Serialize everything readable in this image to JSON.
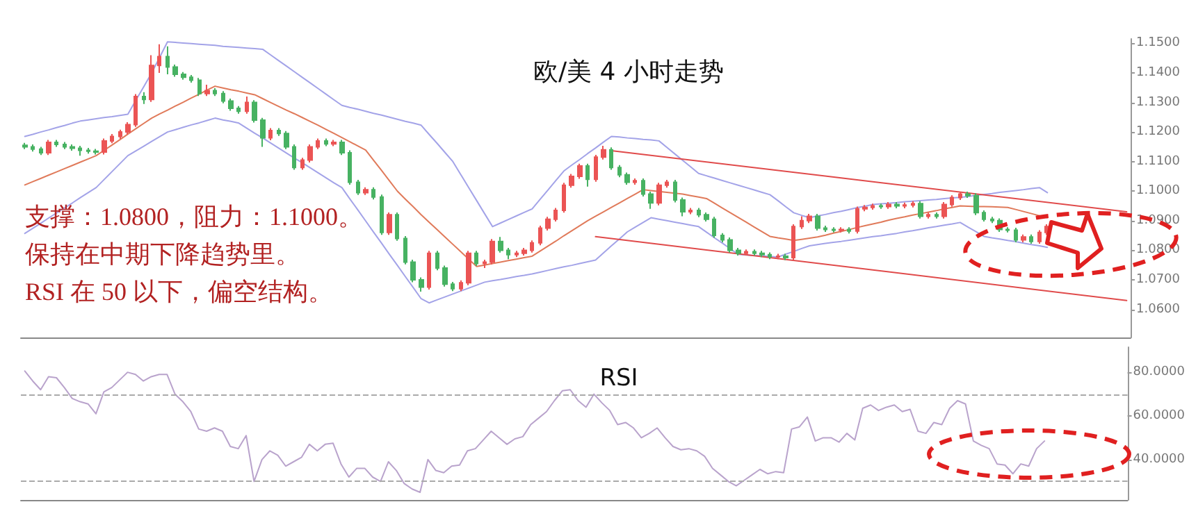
{
  "chart_data": [
    {
      "type": "candlestick",
      "title": "欧/美 4 小时走势",
      "annotations": [
        "支撑：1.0800，阻力：1.1000。",
        "保持在中期下降趋势里。",
        "RSI 在 50 以下，偏空结构。"
      ],
      "categories": [
        null,
        null,
        null,
        null,
        null,
        null,
        null,
        null,
        null,
        null,
        null,
        null,
        null,
        null,
        null,
        null,
        null,
        null,
        null,
        null,
        null,
        null,
        null,
        null,
        null,
        null,
        null,
        null,
        null,
        null,
        null,
        null,
        null,
        null,
        null,
        null,
        null,
        null,
        null,
        null,
        null,
        null,
        null,
        null,
        null,
        null,
        null,
        null,
        null,
        null,
        null,
        null,
        null,
        null,
        null,
        null,
        null,
        null,
        null,
        null,
        null,
        null,
        null,
        null,
        null,
        null,
        null,
        null,
        null,
        null,
        null,
        null,
        null,
        null,
        null,
        null,
        null,
        null,
        null,
        null,
        null,
        null,
        null,
        null,
        null,
        null,
        null,
        null,
        null,
        null,
        null,
        null,
        null,
        null,
        null,
        null,
        null,
        null,
        null,
        null,
        null,
        null,
        null,
        null,
        null,
        null,
        null,
        null,
        null,
        null,
        null,
        null,
        null,
        null,
        null,
        null,
        null,
        null,
        null,
        null,
        null,
        null,
        null,
        null,
        null,
        null,
        null,
        null,
        null,
        null,
        null,
        null,
        null,
        null,
        null,
        null,
        null,
        null,
        null,
        null
      ],
      "ohlc": [
        [
          1.1155,
          1.1163,
          1.1142,
          1.115
        ],
        [
          1.115,
          1.1158,
          1.1134,
          1.1142
        ],
        [
          1.1142,
          1.115,
          1.1122,
          1.113
        ],
        [
          1.113,
          1.1173,
          1.1122,
          1.1165
        ],
        [
          1.1165,
          1.1173,
          1.115,
          1.1158
        ],
        [
          1.1158,
          1.1166,
          1.1142,
          1.115
        ],
        [
          1.115,
          1.1158,
          1.1137,
          1.1145
        ],
        [
          1.1145,
          1.1153,
          1.112,
          1.1138
        ],
        [
          1.1138,
          1.1146,
          1.1127,
          1.1135
        ],
        [
          1.1135,
          1.1143,
          1.1124,
          1.1132
        ],
        [
          1.1132,
          1.1178,
          1.1124,
          1.117
        ],
        [
          1.117,
          1.1193,
          1.1162,
          1.1185
        ],
        [
          1.1185,
          1.1208,
          1.1177,
          1.12
        ],
        [
          1.12,
          1.1233,
          1.1192,
          1.1225
        ],
        [
          1.1225,
          1.1328,
          1.1217,
          1.132
        ],
        [
          1.132,
          1.1335,
          1.1295,
          1.131
        ],
        [
          1.131,
          1.146,
          1.1302,
          1.1425
        ],
        [
          1.1425,
          1.1497,
          1.14,
          1.1455
        ],
        [
          1.1455,
          1.149,
          1.1395,
          1.142
        ],
        [
          1.142,
          1.1428,
          1.1387,
          1.1395
        ],
        [
          1.1395,
          1.1403,
          1.1377,
          1.1385
        ],
        [
          1.1385,
          1.1393,
          1.1367,
          1.1375
        ],
        [
          1.1375,
          1.1383,
          1.1322,
          1.133
        ],
        [
          1.133,
          1.136,
          1.1322,
          1.134
        ],
        [
          1.134,
          1.1348,
          1.1322,
          1.133
        ],
        [
          1.133,
          1.1338,
          1.1297,
          1.1305
        ],
        [
          1.1305,
          1.1313,
          1.1272,
          1.128
        ],
        [
          1.128,
          1.1288,
          1.1262,
          1.127
        ],
        [
          1.127,
          1.132,
          1.1262,
          1.13
        ],
        [
          1.13,
          1.1308,
          1.1232,
          1.124
        ],
        [
          1.124,
          1.1248,
          1.115,
          1.118
        ],
        [
          1.118,
          1.1213,
          1.1172,
          1.1205
        ],
        [
          1.1205,
          1.1213,
          1.1187,
          1.1195
        ],
        [
          1.1195,
          1.1203,
          1.1142,
          1.115
        ],
        [
          1.115,
          1.1158,
          1.1072,
          1.108
        ],
        [
          1.108,
          1.1113,
          1.1072,
          1.1105
        ],
        [
          1.1105,
          1.1158,
          1.1097,
          1.115
        ],
        [
          1.115,
          1.1178,
          1.1142,
          1.117
        ],
        [
          1.117,
          1.1178,
          1.1152,
          1.116
        ],
        [
          1.116,
          1.1173,
          1.1152,
          1.1165
        ],
        [
          1.1165,
          1.1173,
          1.1122,
          1.113
        ],
        [
          1.113,
          1.1138,
          1.1022,
          1.103
        ],
        [
          1.103,
          1.1038,
          1.0987,
          1.0995
        ],
        [
          1.0995,
          1.1013,
          1.0987,
          1.1005
        ],
        [
          1.1005,
          1.1013,
          1.0972,
          1.098
        ],
        [
          1.098,
          1.0988,
          1.0852,
          1.086
        ],
        [
          1.086,
          1.0928,
          1.0852,
          1.092
        ],
        [
          1.092,
          1.0928,
          1.0832,
          1.084
        ],
        [
          1.084,
          1.0848,
          1.0752,
          1.076
        ],
        [
          1.076,
          1.0768,
          1.0692,
          1.07
        ],
        [
          1.07,
          1.0708,
          1.066,
          1.0675
        ],
        [
          1.0675,
          1.0798,
          1.0667,
          1.079
        ],
        [
          1.079,
          1.0798,
          1.0732,
          1.074
        ],
        [
          1.074,
          1.0748,
          1.0677,
          1.0685
        ],
        [
          1.0685,
          1.0693,
          1.0662,
          1.067
        ],
        [
          1.067,
          1.0698,
          1.0662,
          1.069
        ],
        [
          1.069,
          1.0798,
          1.0682,
          1.079
        ],
        [
          1.079,
          1.0798,
          1.0747,
          1.0755
        ],
        [
          1.0755,
          1.0768,
          1.074,
          1.076
        ],
        [
          1.076,
          1.0838,
          1.0752,
          1.083
        ],
        [
          1.083,
          1.0845,
          1.0792,
          1.08
        ],
        [
          1.08,
          1.0808,
          1.077,
          1.0785
        ],
        [
          1.0785,
          1.0798,
          1.0777,
          1.079
        ],
        [
          1.079,
          1.0808,
          1.0782,
          1.08
        ],
        [
          1.08,
          1.0833,
          1.0792,
          1.0825
        ],
        [
          1.0825,
          1.0883,
          1.0817,
          1.0875
        ],
        [
          1.0875,
          1.0913,
          1.0867,
          1.0905
        ],
        [
          1.0905,
          1.0943,
          1.0897,
          1.0935
        ],
        [
          1.0935,
          1.1028,
          1.0927,
          1.102
        ],
        [
          1.102,
          1.1058,
          1.1012,
          1.105
        ],
        [
          1.105,
          1.1093,
          1.1042,
          1.1085
        ],
        [
          1.1085,
          1.1093,
          1.1015,
          1.104
        ],
        [
          1.104,
          1.1123,
          1.1032,
          1.1115
        ],
        [
          1.1115,
          1.1153,
          1.1107,
          1.114
        ],
        [
          1.114,
          1.1148,
          1.1072,
          1.108
        ],
        [
          1.108,
          1.1088,
          1.1047,
          1.1055
        ],
        [
          1.1055,
          1.1063,
          1.1022,
          1.103
        ],
        [
          1.103,
          1.1043,
          1.1022,
          1.1035
        ],
        [
          1.1035,
          1.1043,
          1.0982,
          1.099
        ],
        [
          1.099,
          1.0998,
          1.094,
          1.096
        ],
        [
          1.096,
          1.1028,
          1.0952,
          1.102
        ],
        [
          1.102,
          1.1038,
          1.1012,
          1.103
        ],
        [
          1.103,
          1.1038,
          1.0962,
          1.097
        ],
        [
          1.097,
          1.0978,
          1.0915,
          1.093
        ],
        [
          1.093,
          1.0943,
          1.0922,
          1.0935
        ],
        [
          1.0935,
          1.0943,
          1.0912,
          1.092
        ],
        [
          1.092,
          1.0928,
          1.0897,
          1.0905
        ],
        [
          1.0905,
          1.0913,
          1.0842,
          1.085
        ],
        [
          1.085,
          1.0858,
          1.0827,
          1.0835
        ],
        [
          1.0835,
          1.0843,
          1.0792,
          1.08
        ],
        [
          1.08,
          1.0808,
          1.0782,
          1.079
        ],
        [
          1.079,
          1.0803,
          1.0782,
          1.0795
        ],
        [
          1.0795,
          1.0803,
          1.0782,
          1.079
        ],
        [
          1.079,
          1.0798,
          1.0777,
          1.0785
        ],
        [
          1.0785,
          1.0793,
          1.077,
          1.0778
        ],
        [
          1.0778,
          1.0788,
          1.077,
          1.078
        ],
        [
          1.078,
          1.0788,
          1.0767,
          1.0775
        ],
        [
          1.0775,
          1.0888,
          1.0767,
          1.088
        ],
        [
          1.088,
          1.0915,
          1.0872,
          1.09
        ],
        [
          1.09,
          1.0923,
          1.0892,
          1.0915
        ],
        [
          1.0915,
          1.0923,
          1.0867,
          1.0875
        ],
        [
          1.0875,
          1.0883,
          1.0862,
          1.087
        ],
        [
          1.087,
          1.0878,
          1.086,
          1.0868
        ],
        [
          1.0868,
          1.0878,
          1.086,
          1.087
        ],
        [
          1.087,
          1.0878,
          1.0857,
          1.0865
        ],
        [
          1.0865,
          1.0948,
          1.0857,
          1.094
        ],
        [
          1.094,
          1.0953,
          1.0932,
          1.0945
        ],
        [
          1.0945,
          1.0958,
          1.0937,
          1.095
        ],
        [
          1.095,
          1.0958,
          1.094,
          1.0948
        ],
        [
          1.0948,
          1.0963,
          1.094,
          1.0955
        ],
        [
          1.0955,
          1.0963,
          1.0942,
          1.095
        ],
        [
          1.095,
          1.0961,
          1.0942,
          1.0953
        ],
        [
          1.0953,
          1.0966,
          1.0945,
          1.0958
        ],
        [
          1.0958,
          1.0966,
          1.0907,
          1.0915
        ],
        [
          1.0915,
          1.0928,
          1.0907,
          1.092
        ],
        [
          1.092,
          1.0928,
          1.0907,
          1.0915
        ],
        [
          1.0915,
          1.0963,
          1.0907,
          1.0955
        ],
        [
          1.0955,
          1.0986,
          1.0947,
          1.0978
        ],
        [
          1.0978,
          1.0998,
          1.097,
          1.099
        ],
        [
          1.099,
          1.0998,
          1.0977,
          1.0985
        ],
        [
          1.0985,
          1.0993,
          1.0919,
          1.0927
        ],
        [
          1.0927,
          1.0935,
          1.0897,
          1.0905
        ],
        [
          1.0905,
          1.0913,
          1.0892,
          1.09
        ],
        [
          1.09,
          1.0908,
          1.0862,
          1.087
        ],
        [
          1.087,
          1.0878,
          1.086,
          1.0868
        ],
        [
          1.0868,
          1.0876,
          1.0827,
          1.0835
        ],
        [
          1.0835,
          1.0853,
          1.0827,
          1.0845
        ],
        [
          1.0845,
          1.0853,
          1.0822,
          1.083
        ],
        [
          1.083,
          1.0868,
          1.0822,
          1.086
        ],
        [
          1.086,
          1.0888,
          1.0852,
          1.088
        ],
        null,
        null,
        null,
        null,
        null,
        null,
        null,
        null,
        null,
        null
      ],
      "series": [
        {
          "type": "line",
          "color": "#a3a3e8",
          "values": [
            1.1185,
            1.1192,
            1.12,
            1.1207,
            1.1215,
            1.1222,
            1.123,
            1.1237,
            1.1241,
            1.1245,
            1.1249,
            1.1252,
            1.1256,
            1.126,
            1.1307,
            1.1353,
            1.14,
            1.1452,
            1.1505,
            1.1503,
            1.1501,
            1.1499,
            1.1497,
            1.1495,
            1.1493,
            1.149,
            1.1488,
            1.1486,
            1.1484,
            1.1482,
            1.148,
            1.1461,
            1.1442,
            1.1423,
            1.1404,
            1.1385,
            1.1366,
            1.1347,
            1.1328,
            1.1309,
            1.129,
            1.1283,
            1.1277,
            1.127,
            1.1263,
            1.1257,
            1.125,
            1.1243,
            1.1236,
            1.123,
            1.1223,
            1.1192,
            1.1162,
            1.1131,
            1.11,
            1.1056,
            1.1012,
            1.0968,
            1.0924,
            1.088,
            1.0892,
            1.0904,
            1.0916,
            1.0928,
            1.094,
            1.0972,
            1.1004,
            1.1036,
            1.1068,
            1.1088,
            1.1107,
            1.1127,
            1.1146,
            1.1166,
            1.1185,
            1.1183,
            1.118,
            1.1178,
            1.1175,
            1.1173,
            1.117,
            1.1148,
            1.1126,
            1.1104,
            1.1082,
            1.106,
            1.1052,
            1.1044,
            1.1036,
            1.1028,
            1.102,
            1.1012,
            1.1004,
            1.0996,
            1.0988,
            1.0968,
            1.0947,
            1.0927,
            1.0918,
            1.091,
            1.0916,
            1.0921,
            1.0927,
            1.0932,
            1.0938,
            1.0944,
            1.0949,
            1.0955,
            1.0957,
            1.0959,
            1.0961,
            1.0964,
            1.0966,
            1.0968,
            1.097,
            1.0972,
            1.0975,
            1.0977,
            1.0979,
            1.0982,
            1.0986,
            1.0989,
            1.0992,
            1.0996,
            1.0999,
            1.1002,
            1.1005,
            1.1009,
            1.1012,
            1.0995,
            null,
            null,
            null,
            null,
            null,
            null,
            null,
            null,
            null,
            null
          ]
        },
        {
          "type": "line",
          "color": "#e07a5a",
          "values": [
            1.1021,
            1.1032,
            1.1043,
            1.1054,
            1.1065,
            1.1076,
            1.1087,
            1.1098,
            1.1109,
            1.112,
            1.1138,
            1.1156,
            1.1174,
            1.1193,
            1.1211,
            1.1229,
            1.1247,
            1.1261,
            1.1274,
            1.1288,
            1.1301,
            1.1315,
            1.1328,
            1.1342,
            1.1355,
            1.1349,
            1.1343,
            1.1338,
            1.1332,
            1.1326,
            1.1313,
            1.13,
            1.1287,
            1.1274,
            1.1262,
            1.1249,
            1.1236,
            1.1223,
            1.1209,
            1.1195,
            1.1181,
            1.1167,
            1.1153,
            1.1139,
            1.1104,
            1.107,
            1.1035,
            1.1,
            1.0973,
            1.0947,
            1.092,
            1.0895,
            1.087,
            1.0845,
            1.082,
            1.0795,
            1.077,
            1.0745,
            1.075,
            1.0755,
            1.076,
            1.0765,
            1.077,
            1.0775,
            1.078,
            1.0797,
            1.0814,
            1.0831,
            1.0849,
            1.0866,
            1.0883,
            1.09,
            1.0915,
            1.093,
            1.0945,
            1.096,
            1.0975,
            1.099,
            1.1005,
            1.1002,
            1.0999,
            1.0996,
            1.0993,
            1.099,
            1.0985,
            1.098,
            1.0975,
            1.0959,
            1.0943,
            1.0927,
            1.0911,
            1.0895,
            1.0879,
            1.0863,
            1.0847,
            1.0842,
            1.0838,
            1.0833,
            1.0837,
            1.0841,
            1.0845,
            1.0851,
            1.0858,
            1.0864,
            1.087,
            1.0877,
            1.0883,
            1.0889,
            1.0895,
            1.0902,
            1.0908,
            1.0913,
            1.0919,
            1.0924,
            1.0929,
            1.0934,
            1.094,
            1.0945,
            1.095,
            1.0949,
            1.0948,
            1.0948,
            1.0947,
            1.0946,
            1.0945,
            1.0938,
            1.0931,
            1.0924,
            1.0917,
            1.091,
            null,
            null,
            null,
            null,
            null,
            null,
            null,
            null,
            null,
            null
          ]
        },
        {
          "type": "line",
          "color": "#a3a3e8",
          "values": [
            1.0857,
            1.0874,
            1.0891,
            1.0909,
            1.0926,
            1.0943,
            1.096,
            1.0978,
            1.0995,
            1.1012,
            1.1039,
            1.1066,
            1.1093,
            1.112,
            1.1136,
            1.1152,
            1.1168,
            1.1184,
            1.12,
            1.1208,
            1.1216,
            1.1224,
            1.1231,
            1.1239,
            1.1247,
            1.1241,
            1.1236,
            1.123,
            1.1213,
            1.1196,
            1.118,
            1.1163,
            1.1146,
            1.1129,
            1.1112,
            1.1096,
            1.1079,
            1.1062,
            1.1045,
            1.1028,
            1.1012,
            1.0974,
            1.0937,
            1.0899,
            1.0861,
            1.0824,
            1.0786,
            1.0749,
            1.0711,
            1.0674,
            1.0636,
            1.0622,
            1.0632,
            1.0642,
            1.0652,
            1.0662,
            1.0672,
            1.0682,
            1.0692,
            1.0697,
            1.0701,
            1.0706,
            1.0711,
            1.0715,
            1.072,
            1.0726,
            1.0732,
            1.0738,
            1.0744,
            1.0749,
            1.0755,
            1.0761,
            1.0767,
            1.0791,
            1.0815,
            1.0838,
            1.0862,
            1.0878,
            1.0894,
            1.091,
            1.0905,
            1.09,
            1.0895,
            1.089,
            1.0885,
            1.088,
            1.0861,
            1.0842,
            1.0824,
            1.0805,
            1.0786,
            1.0784,
            1.0782,
            1.0781,
            1.0779,
            1.0777,
            1.0787,
            1.0796,
            1.0806,
            1.0815,
            1.0819,
            1.0823,
            1.0827,
            1.083,
            1.0834,
            1.0838,
            1.0842,
            1.0846,
            1.0849,
            1.0853,
            1.0857,
            1.0862,
            1.0866,
            1.0871,
            1.0876,
            1.088,
            1.0885,
            1.0889,
            1.0894,
            1.0878,
            1.0863,
            1.0847,
            1.0842,
            1.0838,
            1.0833,
            1.0829,
            1.0824,
            1.0819,
            1.0815,
            1.081,
            null,
            null,
            null,
            null,
            null,
            null,
            null,
            null,
            null,
            null
          ]
        },
        {
          "type": "line",
          "color": "#e04a4a",
          "values": [
            null,
            null,
            null,
            null,
            null,
            null,
            null,
            null,
            null,
            null,
            null,
            null,
            null,
            null,
            null,
            null,
            null,
            null,
            null,
            null,
            null,
            null,
            null,
            null,
            null,
            null,
            null,
            null,
            null,
            null,
            null,
            null,
            null,
            null,
            null,
            null,
            null,
            null,
            null,
            null,
            null,
            null,
            null,
            null,
            null,
            null,
            null,
            null,
            null,
            null,
            null,
            null,
            null,
            null,
            null,
            null,
            null,
            null,
            null,
            null,
            null,
            null,
            null,
            null,
            null,
            null,
            null,
            null,
            null,
            null,
            null,
            null,
            null,
            null,
            1.1137,
            null,
            null,
            null,
            null,
            null,
            null,
            null,
            null,
            null,
            null,
            null,
            null,
            null,
            null,
            null,
            null,
            null,
            null,
            null,
            null,
            null,
            null,
            null,
            null,
            null,
            null,
            null,
            null,
            null,
            null,
            null,
            null,
            null,
            null,
            null,
            null,
            null,
            null,
            null,
            null,
            null,
            null,
            null,
            null,
            null,
            null,
            null,
            null,
            null,
            null,
            null,
            null,
            null,
            null,
            null,
            null,
            null,
            null,
            null,
            null,
            null,
            null,
            null,
            null,
            1.093
          ]
        },
        {
          "type": "line",
          "color": "#e04a4a",
          "values": [
            null,
            null,
            null,
            null,
            null,
            null,
            null,
            null,
            null,
            null,
            null,
            null,
            null,
            null,
            null,
            null,
            null,
            null,
            null,
            null,
            null,
            null,
            null,
            null,
            null,
            null,
            null,
            null,
            null,
            null,
            null,
            null,
            null,
            null,
            null,
            null,
            null,
            null,
            null,
            null,
            null,
            null,
            null,
            null,
            null,
            null,
            null,
            null,
            null,
            null,
            null,
            null,
            null,
            null,
            null,
            null,
            null,
            null,
            null,
            null,
            null,
            null,
            null,
            null,
            null,
            null,
            null,
            null,
            null,
            null,
            null,
            null,
            1.0846,
            null,
            null,
            null,
            null,
            null,
            null,
            null,
            null,
            null,
            null,
            null,
            null,
            null,
            null,
            null,
            null,
            null,
            null,
            null,
            null,
            null,
            null,
            null,
            null,
            null,
            null,
            null,
            null,
            null,
            null,
            null,
            null,
            null,
            null,
            null,
            null,
            null,
            null,
            null,
            null,
            null,
            null,
            null,
            null,
            null,
            null,
            null,
            null,
            null,
            null,
            null,
            null,
            null,
            null,
            null,
            null,
            null,
            null,
            null,
            null,
            null,
            null,
            null,
            null,
            null,
            null,
            1.063
          ]
        }
      ],
      "ylim": [
        1.0505,
        1.1515
      ],
      "yticks": [
        {
          "value": 1.06,
          "label": "1.0600"
        },
        {
          "value": 1.07,
          "label": "1.0700"
        },
        {
          "value": 1.08,
          "label": "1.0800"
        },
        {
          "value": 1.09,
          "label": "1.0900"
        },
        {
          "value": 1.1,
          "label": "1.1000"
        },
        {
          "value": 1.11,
          "label": "1.1100"
        },
        {
          "value": 1.12,
          "label": "1.1200"
        },
        {
          "value": 1.13,
          "label": "1.1300"
        },
        {
          "value": 1.14,
          "label": "1.1400"
        },
        {
          "value": 1.15,
          "label": "1.1500"
        }
      ],
      "tick_labels": "y",
      "marker": "none"
    },
    {
      "type": "line",
      "title": "RSI",
      "categories": [
        null,
        null,
        null,
        null,
        null,
        null,
        null,
        null,
        null,
        null,
        null,
        null,
        null,
        null,
        null,
        null,
        null,
        null,
        null,
        null,
        null,
        null,
        null,
        null,
        null,
        null,
        null,
        null,
        null,
        null,
        null,
        null,
        null,
        null,
        null,
        null,
        null,
        null,
        null,
        null,
        null,
        null,
        null,
        null,
        null,
        null,
        null,
        null,
        null,
        null,
        null,
        null,
        null,
        null,
        null,
        null,
        null,
        null,
        null,
        null,
        null,
        null,
        null,
        null,
        null,
        null,
        null,
        null,
        null,
        null,
        null,
        null,
        null,
        null,
        null,
        null,
        null,
        null,
        null,
        null,
        null,
        null,
        null,
        null,
        null,
        null,
        null,
        null,
        null,
        null,
        null,
        null,
        null,
        null,
        null,
        null,
        null,
        null,
        null,
        null,
        null,
        null,
        null,
        null,
        null,
        null,
        null,
        null,
        null,
        null,
        null,
        null,
        null,
        null,
        null,
        null,
        null,
        null,
        null,
        null,
        null,
        null,
        null,
        null,
        null,
        null,
        null,
        null,
        null,
        null,
        null,
        null,
        null,
        null,
        null,
        null,
        null,
        null,
        null,
        null
      ],
      "series": [
        {
          "color": "#b9a3cc",
          "values": [
            80.6,
            76,
            72,
            78,
            77.5,
            73,
            68,
            66.5,
            65.5,
            61,
            71,
            73,
            76.5,
            80,
            79,
            76,
            78,
            79,
            79,
            70,
            66.5,
            62,
            54,
            53,
            54.5,
            53,
            46,
            45,
            51,
            30,
            40,
            44,
            42,
            37,
            39,
            41,
            47,
            44,
            47,
            47.5,
            38,
            32,
            36,
            36,
            32,
            30,
            39,
            35,
            29,
            26.5,
            25,
            40,
            35,
            34,
            37,
            37.5,
            44,
            45,
            49,
            53,
            50,
            47,
            49.5,
            50.5,
            56,
            59,
            62,
            67,
            71.5,
            72,
            67,
            64,
            70,
            66,
            62.5,
            56,
            57,
            54.5,
            50,
            52,
            54.5,
            50,
            46,
            44.5,
            45,
            44,
            41.5,
            36,
            33,
            30,
            28,
            30.5,
            33,
            35.5,
            33.5,
            34.5,
            34,
            54,
            55,
            59.5,
            48.5,
            50,
            50,
            48,
            52,
            49,
            63.5,
            65,
            62.5,
            64,
            65,
            62,
            63,
            53,
            52,
            57,
            56,
            63.5,
            67,
            65.5,
            48.5,
            46.5,
            45,
            38,
            37.5,
            33.5,
            38,
            37,
            45,
            48.5,
            null,
            null,
            null,
            null,
            null,
            null,
            null,
            null,
            null,
            null
          ]
        }
      ],
      "ylim": [
        21.5,
        91.5
      ],
      "yticks": [
        {
          "value": 40,
          "label": "40.0000"
        },
        {
          "value": 60,
          "label": "60.0000"
        },
        {
          "value": 80,
          "label": "80.0000"
        }
      ],
      "ref_lines": [
        {
          "axis": "y",
          "value": 70,
          "line_style": "dashed",
          "color": "#aaaaaa"
        },
        {
          "axis": "y",
          "value": 30,
          "line_style": "dashed",
          "color": "#aaaaaa"
        }
      ],
      "tick_labels": "y",
      "marker": "none"
    }
  ]
}
